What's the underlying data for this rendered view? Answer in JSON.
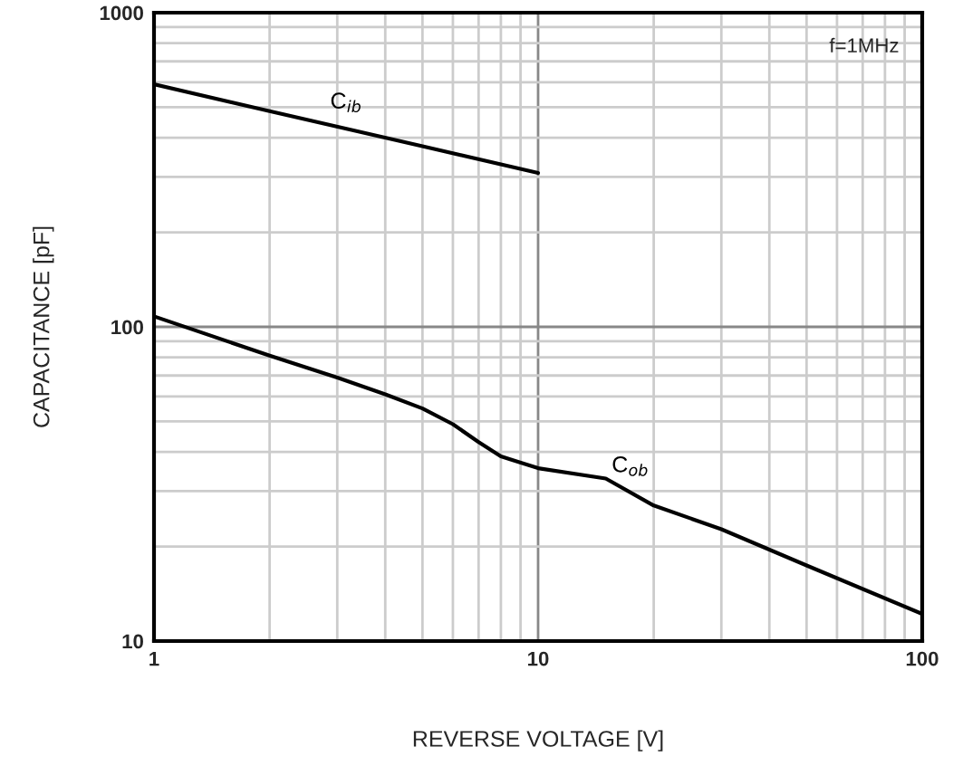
{
  "chart_data": {
    "type": "line",
    "xlabel": "REVERSE VOLTAGE [V]",
    "ylabel": "CAPACITANCE [pF]",
    "log": "xy",
    "grid": true,
    "marker": "none",
    "line_style": "solid",
    "xlim": [
      1,
      100
    ],
    "ylim": [
      10,
      1000
    ],
    "xticks": [
      1,
      {
        "value": 2,
        "label": null
      },
      {
        "value": 3,
        "label": null
      },
      {
        "value": 4,
        "label": null
      },
      {
        "value": 5,
        "label": null
      },
      {
        "value": 6,
        "label": null
      },
      {
        "value": 7,
        "label": null
      },
      {
        "value": 8,
        "label": null
      },
      {
        "value": 9,
        "label": null
      },
      10,
      {
        "value": 20,
        "label": null
      },
      {
        "value": 30,
        "label": null
      },
      {
        "value": 40,
        "label": null
      },
      {
        "value": 50,
        "label": null
      },
      {
        "value": 60,
        "label": null
      },
      {
        "value": 70,
        "label": null
      },
      {
        "value": 80,
        "label": null
      },
      {
        "value": 90,
        "label": null
      },
      100
    ],
    "yticks": [
      10,
      {
        "value": 20,
        "label": null
      },
      {
        "value": 30,
        "label": null
      },
      {
        "value": 40,
        "label": null
      },
      {
        "value": 50,
        "label": null
      },
      {
        "value": 60,
        "label": null
      },
      {
        "value": 70,
        "label": null
      },
      {
        "value": 80,
        "label": null
      },
      {
        "value": 90,
        "label": null
      },
      100,
      {
        "value": 200,
        "label": null
      },
      {
        "value": 300,
        "label": null
      },
      {
        "value": 400,
        "label": null
      },
      {
        "value": 500,
        "label": null
      },
      {
        "value": 600,
        "label": null
      },
      {
        "value": 700,
        "label": null
      },
      {
        "value": 800,
        "label": null
      },
      {
        "value": 900,
        "label": null
      },
      1000
    ],
    "series": [
      {
        "name": "C$_{ib}$",
        "color": "#000000",
        "x": [
          1,
          2,
          5,
          10
        ],
        "values": [
          592,
          486,
          376,
          309
        ]
      },
      {
        "name": "C$_{ob}$",
        "color": "#000000",
        "x": [
          1,
          2,
          3,
          4,
          5,
          6,
          7,
          8,
          10,
          15,
          20,
          30,
          50,
          100
        ],
        "values": [
          108,
          81,
          69,
          61,
          55,
          49,
          43,
          38.7,
          35.5,
          32.9,
          27,
          22.7,
          17.4,
          12.2
        ]
      }
    ],
    "annotations": [
      "f=1MHz"
    ]
  }
}
